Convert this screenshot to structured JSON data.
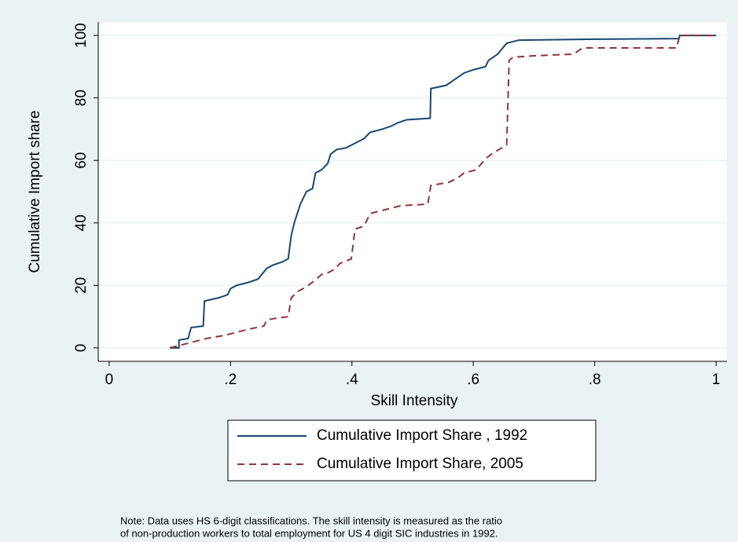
{
  "chart_data": {
    "type": "line",
    "drawstyle": "steps",
    "xlabel": "Skill Intensity",
    "ylabel": "Cumulative Import share",
    "xlim": [
      -0.018,
      1.018
    ],
    "ylim": [
      -4.3,
      104.3
    ],
    "xticks": [
      0,
      {
        "value": 0.2,
        "label": ".2"
      },
      {
        "value": 0.4,
        "label": ".4"
      },
      {
        "value": 0.6,
        "label": ".6"
      },
      {
        "value": 0.8,
        "label": ".8"
      },
      1
    ],
    "yticks": [
      0,
      20,
      40,
      60,
      80,
      100
    ],
    "grid": true,
    "legend": "bottom",
    "series": [
      {
        "name": "Cumulative Import Share , 1992",
        "color": "#1a476f",
        "dash": "solid",
        "x": [
          0.1,
          0.115,
          0.115,
          0.13,
          0.135,
          0.155,
          0.157,
          0.18,
          0.195,
          0.2,
          0.21,
          0.23,
          0.245,
          0.26,
          0.27,
          0.285,
          0.295,
          0.3,
          0.305,
          0.31,
          0.315,
          0.32,
          0.325,
          0.335,
          0.34,
          0.35,
          0.36,
          0.365,
          0.375,
          0.39,
          0.4,
          0.41,
          0.42,
          0.43,
          0.45,
          0.465,
          0.475,
          0.49,
          0.529,
          0.53,
          0.555,
          0.57,
          0.585,
          0.6,
          0.62,
          0.625,
          0.64,
          0.655,
          0.675,
          0.8,
          0.939,
          0.94,
          1.0
        ],
        "values": [
          0,
          0,
          2.5,
          3,
          6.5,
          7,
          15,
          16,
          17,
          19,
          20,
          21,
          22,
          25.5,
          26.5,
          27.5,
          28.5,
          36,
          40,
          43,
          46,
          48,
          50,
          51,
          56,
          57,
          59,
          62,
          63.5,
          64,
          65,
          66,
          67,
          69,
          70,
          71,
          72,
          73,
          73.5,
          83,
          84,
          86,
          88,
          89,
          90,
          92,
          94,
          97.5,
          98.5,
          98.8,
          99,
          100,
          100
        ]
      },
      {
        "name": "Cumulative Import Share, 2005",
        "color": "#90353b",
        "dash": "dashed",
        "x": [
          0.1,
          0.12,
          0.14,
          0.16,
          0.19,
          0.21,
          0.23,
          0.255,
          0.26,
          0.275,
          0.295,
          0.3,
          0.31,
          0.32,
          0.335,
          0.35,
          0.36,
          0.37,
          0.38,
          0.399,
          0.405,
          0.42,
          0.43,
          0.44,
          0.46,
          0.48,
          0.525,
          0.53,
          0.56,
          0.575,
          0.585,
          0.605,
          0.62,
          0.63,
          0.655,
          0.659,
          0.665,
          0.7,
          0.765,
          0.78,
          0.935,
          0.94,
          1.0
        ],
        "values": [
          0,
          1,
          2,
          3,
          4,
          5,
          6,
          7,
          9,
          9.5,
          10,
          16,
          18,
          19,
          21,
          23.5,
          24,
          25,
          27,
          28.5,
          38,
          39,
          43,
          43.5,
          44.5,
          45.5,
          46,
          52,
          53,
          54.5,
          56,
          57,
          60.5,
          62,
          65,
          92,
          93,
          93.5,
          94,
          96,
          96,
          100,
          100
        ]
      }
    ],
    "note": [
      "Note:  Data uses HS 6-digit classifications. The skill intensity is measured as the ratio",
      "of non-production workers to total employment for US 4 digit SIC industries in 1992."
    ]
  }
}
